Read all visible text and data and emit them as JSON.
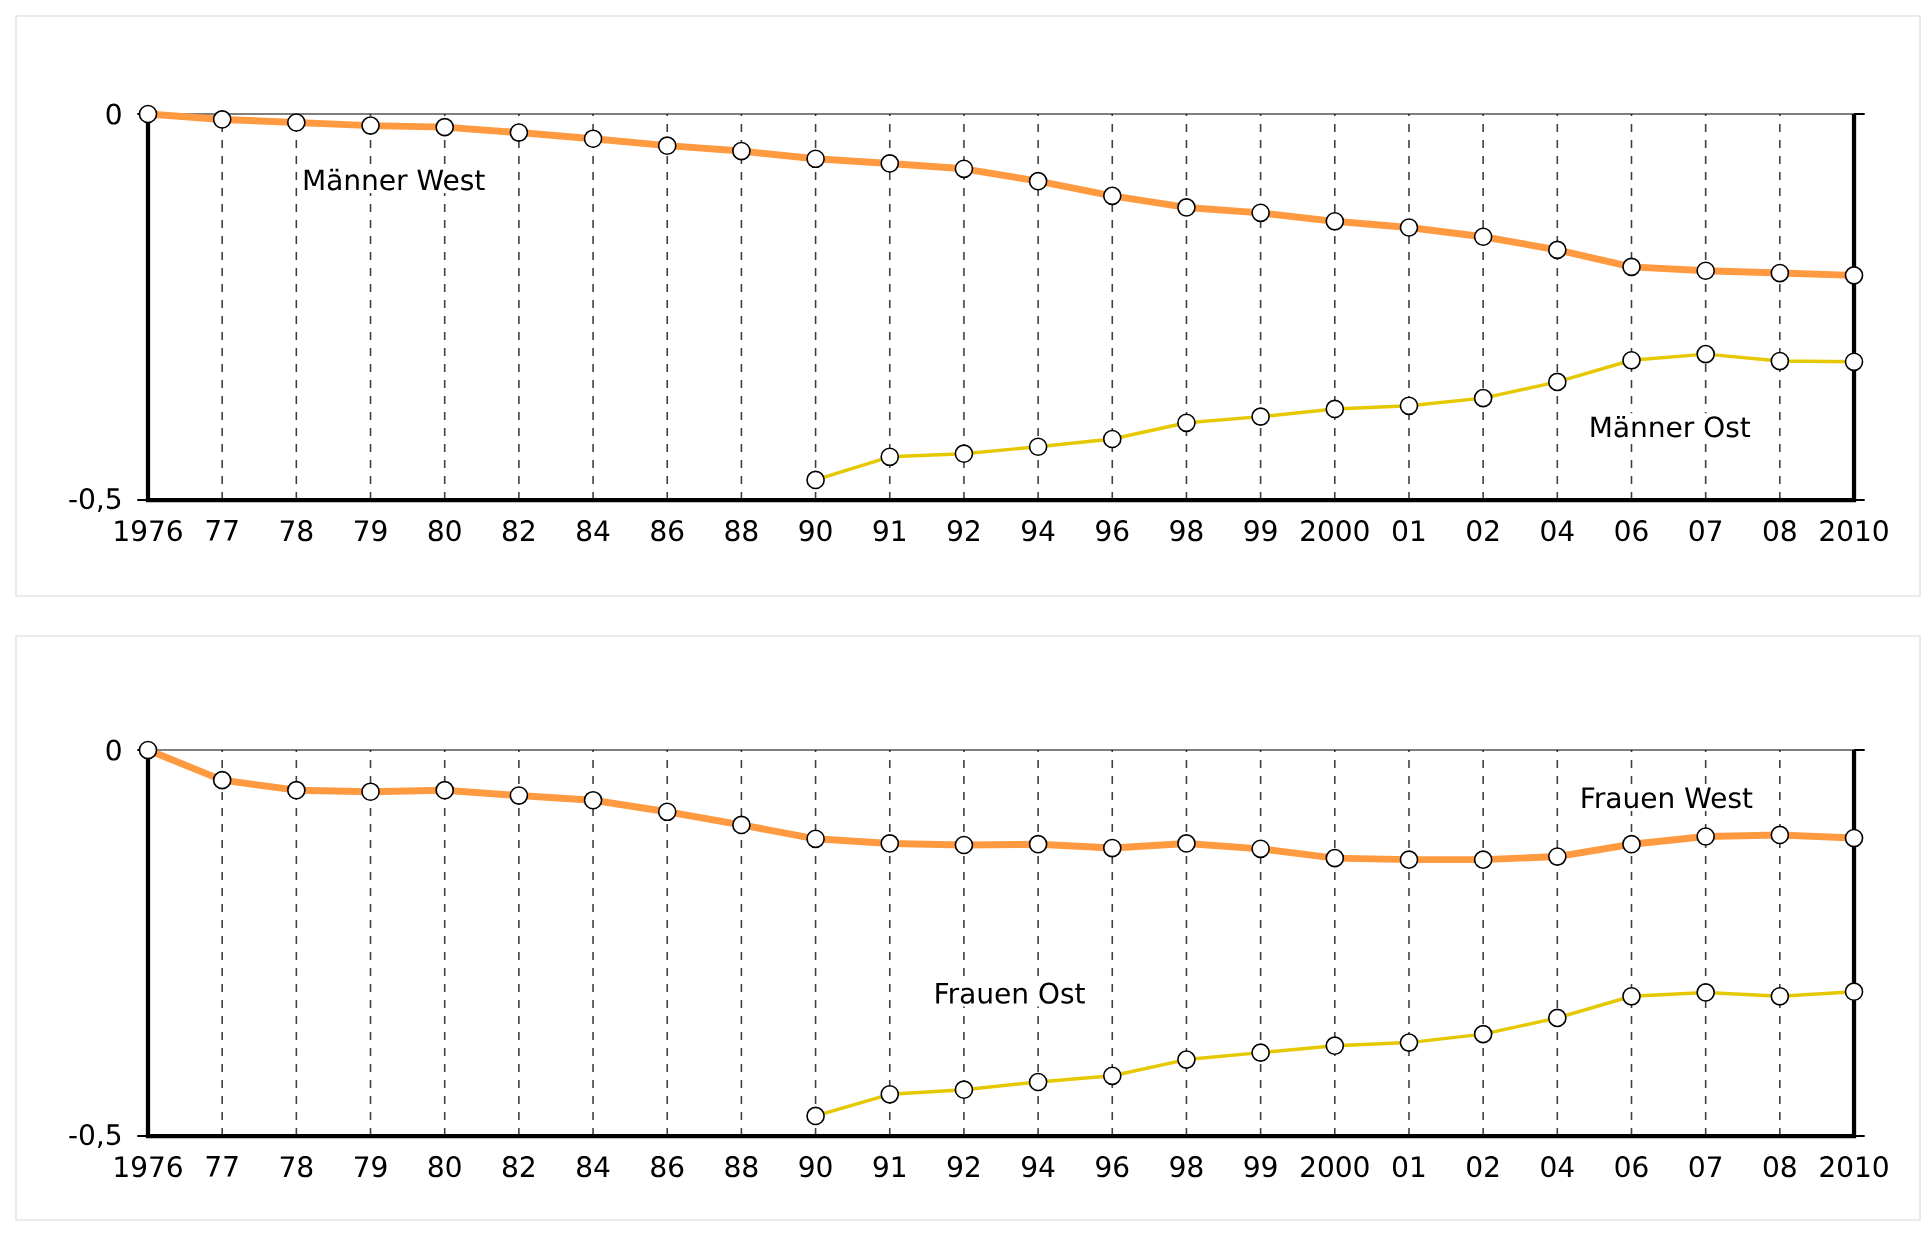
{
  "chart_data": [
    {
      "type": "line",
      "categories": [
        "1976",
        "77",
        "78",
        "79",
        "80",
        "82",
        "84",
        "86",
        "88",
        "90",
        "91",
        "92",
        "94",
        "96",
        "98",
        "99",
        "2000",
        "01",
        "02",
        "04",
        "06",
        "07",
        "08",
        "2010"
      ],
      "series": [
        {
          "color": "#ff9a40",
          "values": [
            0,
            -0.007,
            -0.011,
            -0.015,
            -0.017,
            -0.024,
            -0.032,
            -0.041,
            -0.048,
            -0.058,
            -0.064,
            -0.071,
            -0.087,
            -0.106,
            -0.121,
            -0.128,
            -0.139,
            -0.147,
            -0.159,
            -0.176,
            -0.198,
            -0.203,
            -0.206,
            -0.209
          ]
        },
        {
          "color": "#e6c800",
          "values": [
            null,
            null,
            null,
            null,
            null,
            null,
            null,
            null,
            null,
            -0.474,
            -0.444,
            -0.44,
            -0.431,
            -0.421,
            -0.4,
            -0.392,
            -0.382,
            -0.378,
            -0.368,
            -0.347,
            -0.319,
            -0.311,
            -0.32,
            -0.321
          ]
        }
      ],
      "ylim": [
        -0.5,
        0
      ],
      "yticks": [
        {
          "value": -0.5,
          "label": "-0,5"
        },
        0
      ],
      "grid": "x",
      "marker": "circle",
      "annotations": [
        "Männer West",
        "Männer Ost"
      ]
    },
    {
      "type": "line",
      "categories": [
        "1976",
        "77",
        "78",
        "79",
        "80",
        "82",
        "84",
        "86",
        "88",
        "90",
        "91",
        "92",
        "94",
        "96",
        "98",
        "99",
        "2000",
        "01",
        "02",
        "04",
        "06",
        "07",
        "08",
        "2010"
      ],
      "series": [
        {
          "color": "#ff9a40",
          "values": [
            0,
            -0.039,
            -0.052,
            -0.054,
            -0.052,
            -0.059,
            -0.065,
            -0.08,
            -0.097,
            -0.115,
            -0.121,
            -0.123,
            -0.122,
            -0.127,
            -0.121,
            -0.128,
            -0.14,
            -0.142,
            -0.142,
            -0.138,
            -0.122,
            -0.112,
            -0.11,
            -0.114
          ]
        },
        {
          "color": "#e6c800",
          "values": [
            null,
            null,
            null,
            null,
            null,
            null,
            null,
            null,
            null,
            -0.474,
            -0.446,
            -0.44,
            -0.43,
            -0.422,
            -0.401,
            -0.392,
            -0.383,
            -0.379,
            -0.368,
            -0.347,
            -0.319,
            -0.314,
            -0.319,
            -0.313
          ]
        }
      ],
      "ylim": [
        -0.5,
        0
      ],
      "yticks": [
        {
          "value": -0.5,
          "label": "-0,5"
        },
        0
      ],
      "grid": "x",
      "marker": "circle",
      "annotations": [
        "Frauen West",
        "Frauen Ost"
      ]
    }
  ]
}
